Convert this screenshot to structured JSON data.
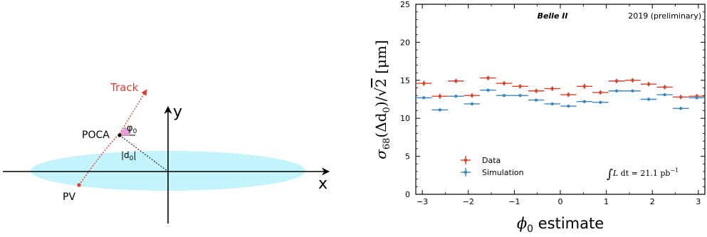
{
  "diagram": {
    "x_axis_label": "x",
    "y_axis_label": "y",
    "track_label": "Track",
    "poca_label": "POCA",
    "pv_label": "PV",
    "phi_label": "φ",
    "phi_sub": "0",
    "d_label": "|d",
    "d_sub": "0",
    "d_close": "|",
    "colors": {
      "beam": "#c3f3fb",
      "track": "#e8392b",
      "angle": "#e8a0dc"
    }
  },
  "chart_data": {
    "type": "errorbar",
    "annotations": {
      "experiment": "Belle II",
      "status": "2019 (preliminary)",
      "luminosity_int": "∫",
      "luminosity_L": "L",
      "luminosity_rest": " dt = 21.1 pb",
      "luminosity_exp": "−1"
    },
    "xlabel_symbol": "ϕ",
    "xlabel_sub": "0",
    "xlabel_text": " estimate",
    "ylabel": {
      "sigma": "σ",
      "sub": "68",
      "mid": "(Δd",
      "mid_sub": "0",
      "close": ")",
      "slash": "/",
      "two": "2",
      "unit": "[μm]"
    },
    "xlim": [
      -3.14159,
      3.14159
    ],
    "ylim": [
      0,
      25
    ],
    "xticks": [
      -3,
      -2,
      -1,
      0,
      1,
      2,
      3
    ],
    "xtick_labels": [
      "−3",
      "−2",
      "−1",
      "0",
      "1",
      "2",
      "3"
    ],
    "yticks": [
      0,
      5,
      10,
      15,
      20,
      25
    ],
    "ytick_labels": [
      "0",
      "5",
      "10",
      "15",
      "20",
      "25"
    ],
    "x_bin_half_width": 0.1745,
    "x": [
      -2.967,
      -2.618,
      -2.269,
      -1.92,
      -1.571,
      -1.222,
      -0.873,
      -0.524,
      -0.175,
      0.175,
      0.524,
      0.873,
      1.222,
      1.571,
      1.92,
      2.269,
      2.618,
      2.967
    ],
    "legend_position": "bottom-left",
    "series": [
      {
        "name": "Data",
        "color": "#d9412b",
        "y": [
          14.6,
          12.9,
          14.9,
          13.0,
          15.3,
          14.6,
          14.2,
          13.6,
          13.9,
          13.1,
          14.2,
          13.4,
          14.9,
          15.0,
          14.5,
          14.1,
          12.8,
          12.9
        ],
        "yerr": [
          0.35,
          0.35,
          0.3,
          0.3,
          0.3,
          0.3,
          0.3,
          0.3,
          0.3,
          0.3,
          0.35,
          0.3,
          0.3,
          0.3,
          0.3,
          0.3,
          0.3,
          0.3
        ]
      },
      {
        "name": "Simulation",
        "color": "#3a86c0",
        "y": [
          12.7,
          11.1,
          12.9,
          11.9,
          13.7,
          13.0,
          13.0,
          12.4,
          11.9,
          11.6,
          12.2,
          12.1,
          13.6,
          13.6,
          12.5,
          13.1,
          11.3,
          12.7
        ],
        "yerr": [
          0.1,
          0.1,
          0.1,
          0.1,
          0.1,
          0.1,
          0.1,
          0.1,
          0.1,
          0.1,
          0.1,
          0.1,
          0.1,
          0.1,
          0.1,
          0.1,
          0.1,
          0.1
        ]
      }
    ]
  }
}
